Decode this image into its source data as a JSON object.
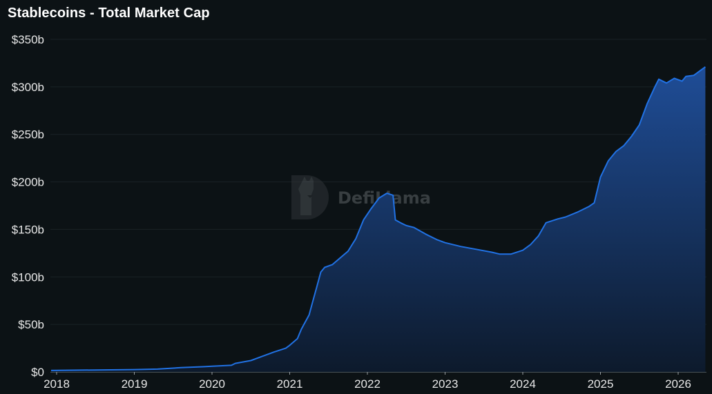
{
  "header": {
    "title": "Stablecoins - Total Market Cap"
  },
  "watermark": {
    "text": "DefiLlama",
    "icon": "llama-logo-icon"
  },
  "colors": {
    "background": "#0c1215",
    "line": "#2172e5",
    "area_top": "#1f4d97",
    "area_bottom": "#0d1a2c",
    "grid": "#1a2226",
    "axis": "#4a5256"
  },
  "chart_data": {
    "type": "area",
    "title": "Stablecoins - Total Market Cap",
    "xlabel": "",
    "ylabel": "",
    "ylim": [
      0,
      350
    ],
    "yunit": "$b",
    "grid": true,
    "legend": null,
    "y_ticks": [
      "$0",
      "$50b",
      "$100b",
      "$150b",
      "$200b",
      "$250b",
      "$300b",
      "$350b"
    ],
    "x_ticks": [
      "2018",
      "2019",
      "2020",
      "2021",
      "2022",
      "2023",
      "2024",
      "2025",
      "2026"
    ],
    "series": [
      {
        "name": "Total Market Cap",
        "x": [
          2017.98,
          2018.5,
          2019.0,
          2019.3,
          2019.6,
          2019.9,
          2020.0,
          2020.25,
          2020.3,
          2020.5,
          2020.7,
          2020.8,
          2020.95,
          2021.0,
          2021.1,
          2021.15,
          2021.25,
          2021.3,
          2021.35,
          2021.4,
          2021.45,
          2021.55,
          2021.65,
          2021.75,
          2021.85,
          2021.95,
          2022.05,
          2022.15,
          2022.25,
          2022.33,
          2022.36,
          2022.45,
          2022.5,
          2022.6,
          2022.75,
          2022.9,
          2023.0,
          2023.2,
          2023.4,
          2023.6,
          2023.7,
          2023.85,
          2024.0,
          2024.1,
          2024.2,
          2024.3,
          2024.45,
          2024.55,
          2024.7,
          2024.85,
          2024.92,
          2025.0,
          2025.1,
          2025.2,
          2025.3,
          2025.4,
          2025.5,
          2025.6,
          2025.7,
          2025.75,
          2025.85,
          2025.95,
          2026.05,
          2026.1,
          2026.2,
          2026.3,
          2026.35
        ],
        "values": [
          1.5,
          2,
          2.5,
          3,
          4.5,
          5.5,
          6,
          7,
          9,
          12,
          18,
          21,
          25,
          28,
          35,
          45,
          60,
          75,
          90,
          105,
          110,
          113,
          120,
          127,
          140,
          160,
          172,
          183,
          188,
          186,
          160,
          156,
          154,
          152,
          145,
          139,
          136,
          132,
          129,
          126,
          124,
          124,
          128,
          134,
          143,
          157,
          161,
          163,
          168,
          174,
          178,
          205,
          222,
          232,
          238,
          248,
          260,
          282,
          300,
          308,
          304,
          309,
          306,
          311,
          312,
          318,
          321
        ]
      }
    ]
  }
}
